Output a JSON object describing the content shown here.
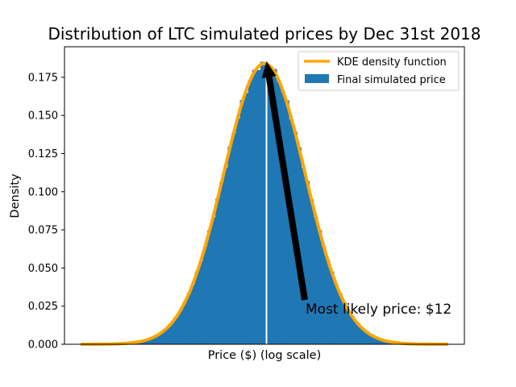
{
  "chart_data": {
    "type": "histogram",
    "title": "Distribution of LTC simulated prices by Dec 31st 2018",
    "xlabel": "Price ($) (log scale)",
    "ylabel": "Density",
    "xscale": "log",
    "ylim": [
      0,
      0.195
    ],
    "yticks": [
      "0.000",
      "0.025",
      "0.050",
      "0.075",
      "0.100",
      "0.125",
      "0.150",
      "0.175"
    ],
    "grid": false,
    "legend_position": "top-right",
    "series": [
      {
        "name": "KDE density function",
        "kind": "line",
        "color": "#ffa500"
      },
      {
        "name": "Final simulated price",
        "kind": "bars",
        "color": "#1f77b4"
      }
    ],
    "distribution": {
      "shape": "normal",
      "peak_density": 0.184,
      "mode_line_color": "#ffffff"
    },
    "annotation": {
      "text": "Most likely price: $12",
      "arrow": true
    }
  }
}
